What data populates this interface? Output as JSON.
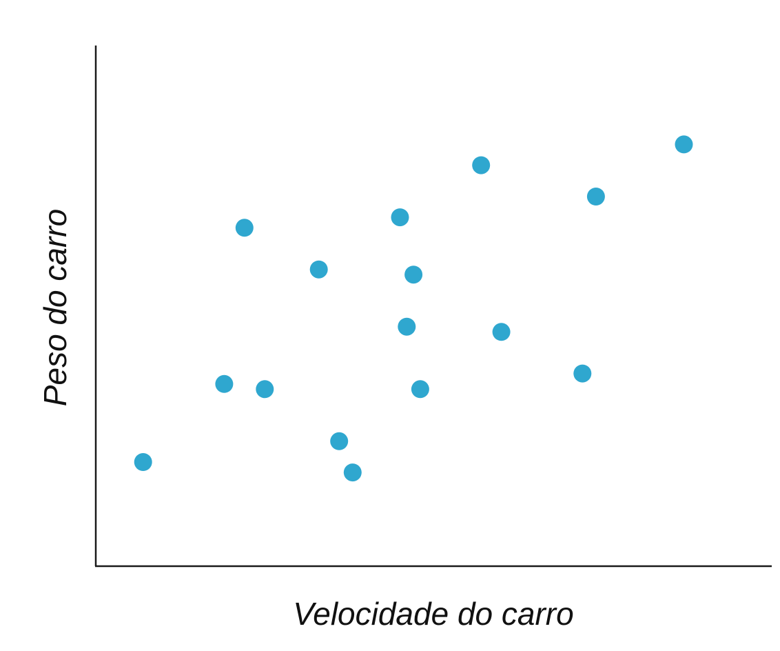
{
  "chart_data": {
    "type": "scatter",
    "xlabel": "Velocidade do carro",
    "ylabel": "Peso do carro",
    "xlim": [
      0,
      100
    ],
    "ylim": [
      0,
      100
    ],
    "grid": false,
    "point_color": "#2fa7cf",
    "points": [
      {
        "x": 7,
        "y": 20
      },
      {
        "x": 19,
        "y": 35
      },
      {
        "x": 22,
        "y": 65
      },
      {
        "x": 25,
        "y": 34
      },
      {
        "x": 33,
        "y": 57
      },
      {
        "x": 36,
        "y": 24
      },
      {
        "x": 38,
        "y": 18
      },
      {
        "x": 45,
        "y": 67
      },
      {
        "x": 46,
        "y": 46
      },
      {
        "x": 47,
        "y": 56
      },
      {
        "x": 48,
        "y": 34
      },
      {
        "x": 57,
        "y": 77
      },
      {
        "x": 60,
        "y": 45
      },
      {
        "x": 72,
        "y": 37
      },
      {
        "x": 74,
        "y": 71
      },
      {
        "x": 87,
        "y": 81
      }
    ]
  }
}
